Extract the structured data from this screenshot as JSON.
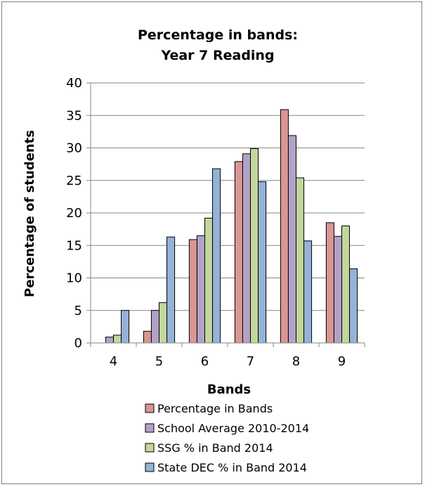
{
  "chart_data": {
    "type": "bar",
    "title": [
      "Percentage in bands:",
      "Year 7 Reading"
    ],
    "xlabel": "Bands",
    "ylabel": "Percentage of students",
    "ylim": [
      0,
      40
    ],
    "yticks": [
      0,
      5,
      10,
      15,
      20,
      25,
      30,
      35,
      40
    ],
    "categories": [
      "4",
      "5",
      "6",
      "7",
      "8",
      "9"
    ],
    "grid": true,
    "legend_position": "bottom",
    "series": [
      {
        "name": "Percentage in Bands",
        "color": "#d99694",
        "values": [
          0,
          1.8,
          15.9,
          27.9,
          35.9,
          18.5
        ]
      },
      {
        "name": "School Average 2010-2014",
        "color": "#b3a2c7",
        "values": [
          0.9,
          5.0,
          16.5,
          29.1,
          31.9,
          16.4
        ]
      },
      {
        "name": "SSG % in Band 2014",
        "color": "#c3d69b",
        "values": [
          1.2,
          6.2,
          19.2,
          29.9,
          25.4,
          18.0
        ]
      },
      {
        "name": "State DEC % in Band 2014",
        "color": "#95b3d7",
        "values": [
          5.0,
          16.3,
          26.8,
          24.8,
          15.7,
          11.4
        ]
      }
    ]
  }
}
